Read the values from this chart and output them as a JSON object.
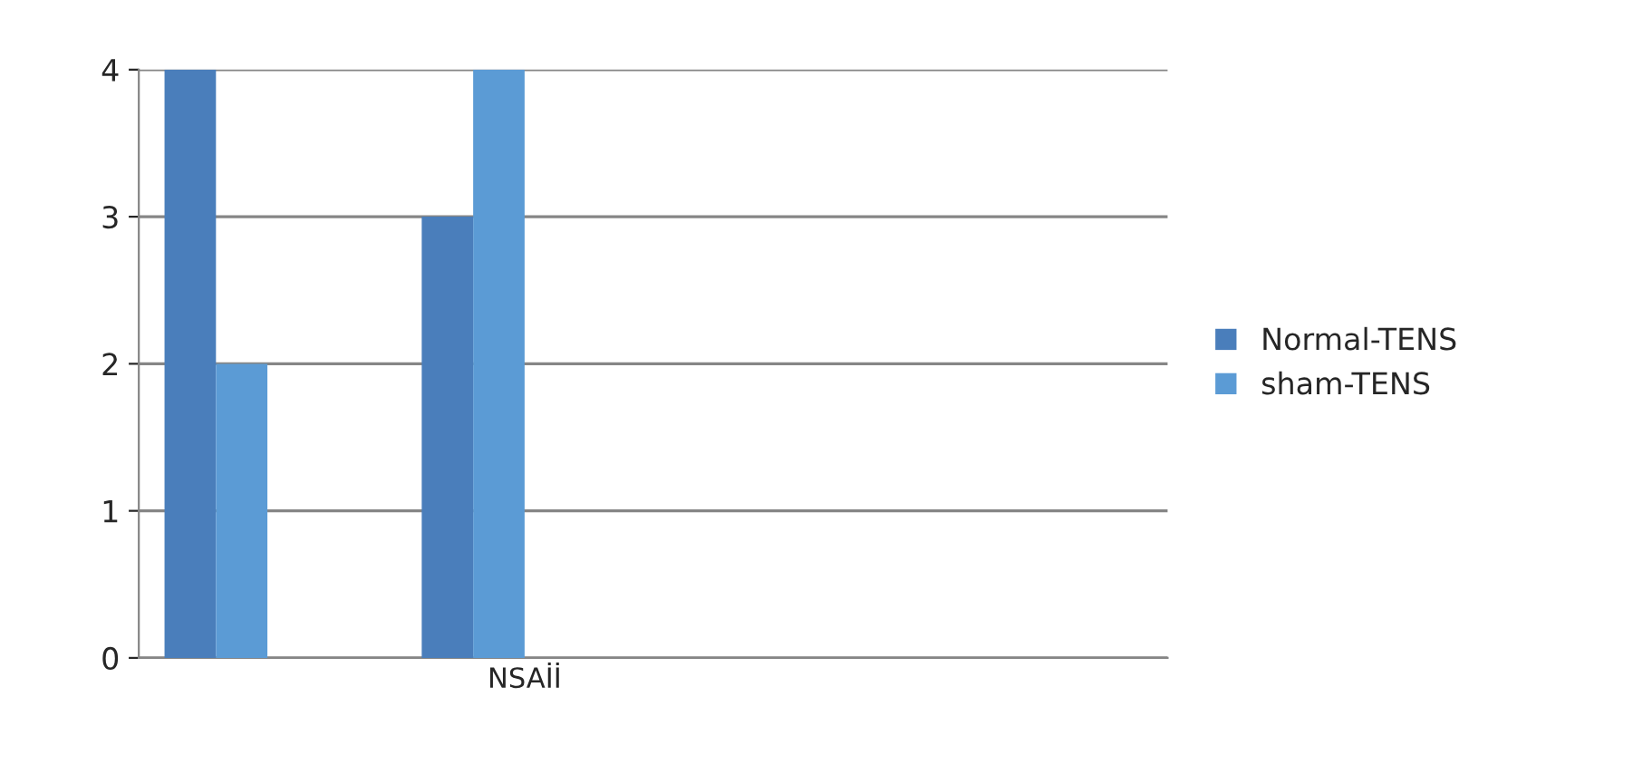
{
  "chart_data": {
    "type": "bar",
    "categories": [
      null,
      "NSAİİ",
      null,
      null
    ],
    "series": [
      {
        "name": "Normal-TENS",
        "color": "#4a7ebb",
        "values": [
          4,
          3,
          null,
          null
        ]
      },
      {
        "name": "sham-TENS",
        "color": "#5b9bd5",
        "values": [
          2,
          4,
          null,
          null
        ]
      }
    ],
    "ylim": [
      0,
      4
    ],
    "yticks": [
      0,
      1,
      2,
      3,
      4
    ],
    "grid": "y",
    "legend": "right"
  }
}
